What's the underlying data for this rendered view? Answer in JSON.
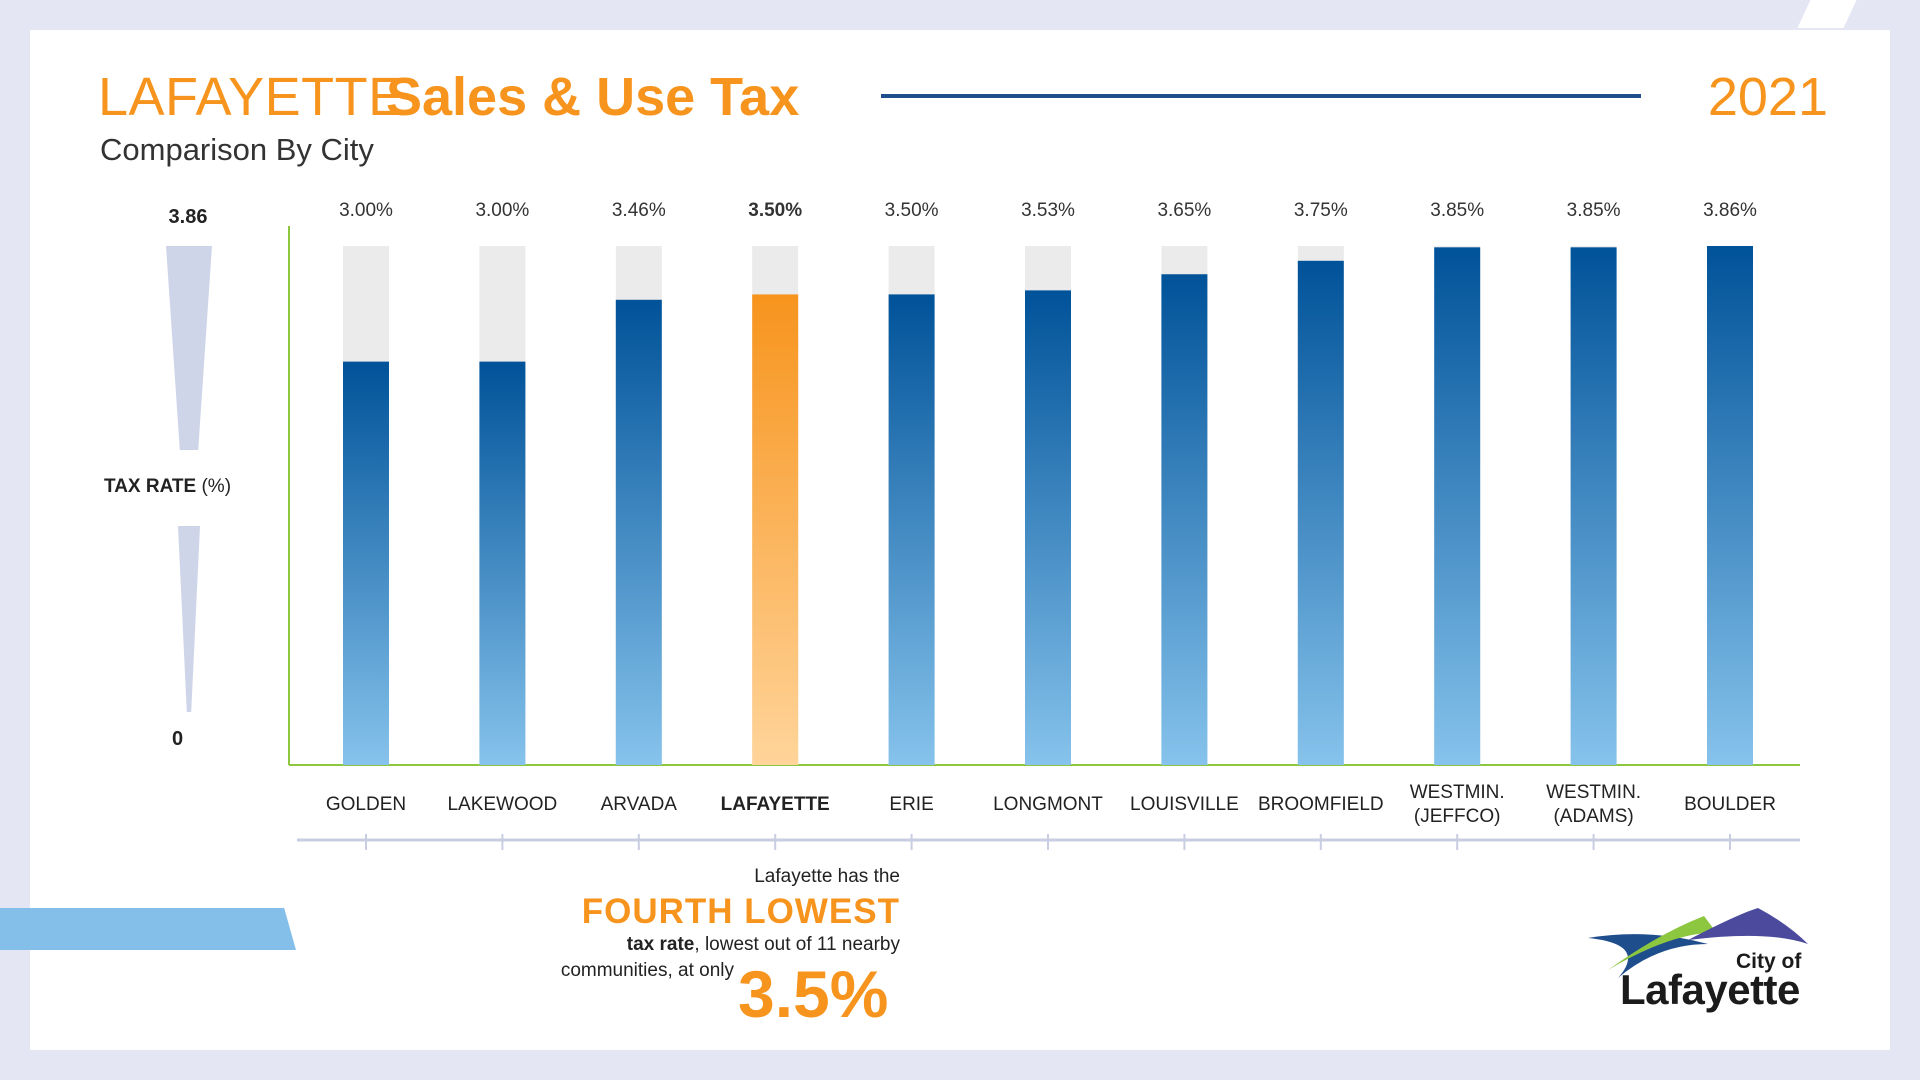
{
  "header": {
    "title_light": "LAFAYETTE",
    "title_bold": "Sales & Use Tax",
    "year": "2021",
    "subtitle": "Comparison By City"
  },
  "y_axis": {
    "top_label": "3.86",
    "label_bold": "TAX RATE",
    "label_unit": "(%)",
    "bottom_label": "0"
  },
  "chart_data": {
    "type": "bar",
    "categories": [
      "GOLDEN",
      "LAKEWOOD",
      "ARVADA",
      "LAFAYETTE",
      "ERIE",
      "LONGMONT",
      "LOUISVILLE",
      "BROOMFIELD",
      "WESTMIN.\n(JEFFCO)",
      "WESTMIN.\n(ADAMS)",
      "BOULDER"
    ],
    "values": [
      3.0,
      3.0,
      3.46,
      3.5,
      3.5,
      3.53,
      3.65,
      3.75,
      3.85,
      3.85,
      3.86
    ],
    "value_labels": [
      "3.00%",
      "3.00%",
      "3.46%",
      "3.50%",
      "3.50%",
      "3.53%",
      "3.65%",
      "3.75%",
      "3.85%",
      "3.85%",
      "3.86%"
    ],
    "highlight": "LAFAYETTE",
    "ylim": [
      0,
      3.86
    ],
    "colors": {
      "bar_top": "#005299",
      "bar_bottom": "#86c3ec",
      "highlight_top": "#f7941d",
      "highlight_bottom": "#ffd49a",
      "track": "#ebebeb",
      "axis": "#8dc63f",
      "tick_line": "#c9cde2"
    }
  },
  "callout": {
    "line1": "Lafayette has the",
    "big": "FOURTH LOWEST",
    "line3_bold": "tax rate",
    "line3_rest": ", lowest out of 11 nearby",
    "line4": "communities, at only",
    "pct": "3.5%"
  },
  "logo": {
    "line1": "City of",
    "line2": "Lafayette",
    "colors": [
      "#1f4e8c",
      "#8dc63f",
      "#4b4a9c"
    ]
  }
}
